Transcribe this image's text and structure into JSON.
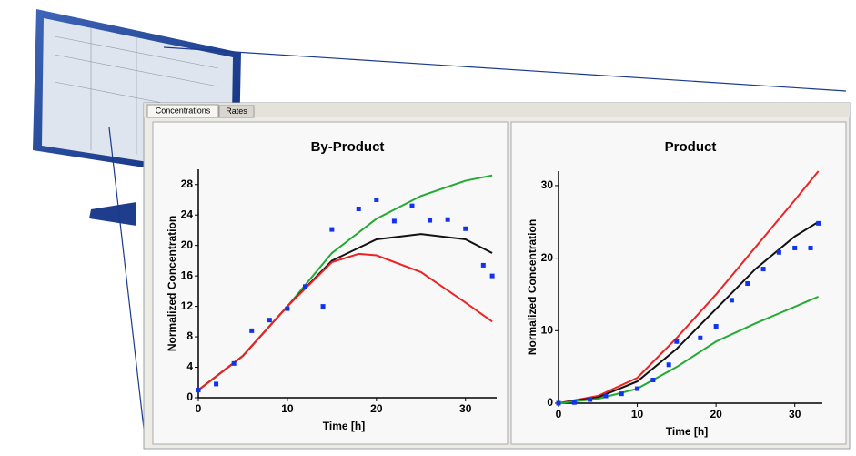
{
  "tabs": [
    "Concentrations",
    "Rates"
  ],
  "chart_data": [
    {
      "type": "line",
      "title": "By-Product",
      "xlabel": "Time [h]",
      "ylabel": "Normalized Concentration",
      "xlim": [
        0,
        33.5
      ],
      "xticks": [
        0,
        10,
        20,
        30
      ],
      "ylim": [
        0,
        30
      ],
      "yticks": [
        0,
        4,
        8,
        12,
        16,
        20,
        24,
        28
      ],
      "series": [
        {
          "color": "#22aa33",
          "style": "line",
          "x": [
            0,
            5,
            10,
            15,
            20,
            25,
            30,
            33
          ],
          "values": [
            1,
            5.5,
            12,
            19,
            23.5,
            26.5,
            28.5,
            29.2
          ]
        },
        {
          "color": "#111111",
          "style": "line",
          "x": [
            0,
            5,
            10,
            15,
            20,
            25,
            30,
            33
          ],
          "values": [
            1,
            5.5,
            12,
            18,
            20.8,
            21.5,
            20.8,
            19
          ]
        },
        {
          "color": "#ee2222",
          "style": "line",
          "x": [
            0,
            5,
            10,
            15,
            18,
            20,
            25,
            30,
            33
          ],
          "values": [
            1,
            5.5,
            12,
            17.8,
            18.9,
            18.7,
            16.5,
            12.5,
            10
          ]
        },
        {
          "color": "#1133ee",
          "style": "markers",
          "x": [
            0,
            2,
            4,
            6,
            8,
            10,
            12,
            14,
            15,
            18,
            20,
            22,
            24,
            26,
            28,
            30,
            32,
            33
          ],
          "values": [
            1,
            1.8,
            4.5,
            8.8,
            10.2,
            11.7,
            14.6,
            12,
            22.1,
            24.8,
            26,
            23.2,
            25.2,
            23.3,
            23.4,
            22.2,
            17.4,
            16
          ]
        }
      ]
    },
    {
      "type": "line",
      "title": "Product",
      "xlabel": "Time [h]",
      "ylabel": "Normalized Concentration",
      "xlim": [
        0,
        33.5
      ],
      "xticks": [
        0,
        10,
        20,
        30
      ],
      "ylim": [
        0,
        32
      ],
      "yticks": [
        0,
        10,
        20,
        30
      ],
      "series": [
        {
          "color": "#ee2222",
          "style": "line",
          "x": [
            0,
            5,
            10,
            15,
            20,
            25,
            30,
            33
          ],
          "values": [
            0,
            1,
            3.5,
            9,
            15,
            21.5,
            28,
            32
          ]
        },
        {
          "color": "#111111",
          "style": "line",
          "x": [
            0,
            5,
            10,
            15,
            20,
            25,
            30,
            33
          ],
          "values": [
            0,
            0.8,
            3,
            7.5,
            13,
            18.5,
            23,
            25
          ]
        },
        {
          "color": "#22aa33",
          "style": "line",
          "x": [
            0,
            5,
            10,
            15,
            20,
            25,
            30,
            33
          ],
          "values": [
            0,
            0.6,
            2,
            5,
            8.5,
            11,
            13.3,
            14.7
          ]
        },
        {
          "color": "#1133ee",
          "style": "markers",
          "x": [
            0,
            2,
            4,
            6,
            8,
            10,
            12,
            14,
            15,
            18,
            20,
            22,
            24,
            26,
            28,
            30,
            32,
            33
          ],
          "values": [
            0,
            0.1,
            0.5,
            1,
            1.3,
            2,
            3.2,
            5.3,
            8.5,
            9,
            10.6,
            14.2,
            16.5,
            18.5,
            20.8,
            21.4,
            21.4,
            24.8
          ]
        }
      ]
    }
  ]
}
